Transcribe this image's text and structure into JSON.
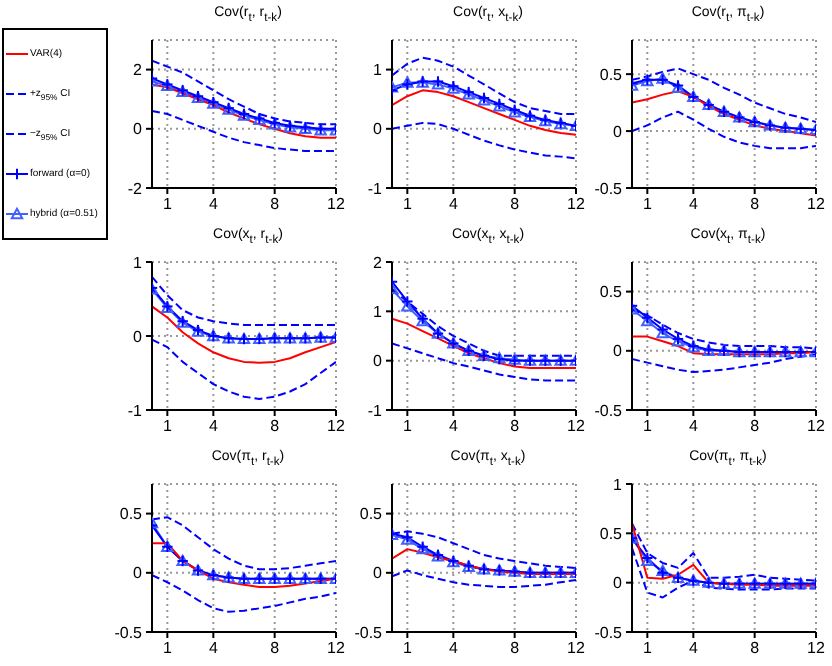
{
  "chart_data": [
    {
      "type": "line",
      "title": "Cov(r$_{t}$, r$_{t-k}$)",
      "x": [
        0,
        1,
        2,
        3,
        4,
        5,
        6,
        7,
        8,
        9,
        10,
        11,
        12
      ],
      "xlim": [
        0,
        12
      ],
      "xticks": [
        1,
        4,
        8,
        12
      ],
      "ylim": [
        -2,
        3
      ],
      "yticks": [
        -2,
        0,
        2
      ],
      "grid": true,
      "legend": "left",
      "series": [
        {
          "name": "VAR(4)",
          "color": "#ff0000",
          "line_style": "solid",
          "marker": "none",
          "values": [
            1.5,
            1.4,
            1.2,
            1.0,
            0.8,
            0.55,
            0.35,
            0.15,
            0,
            -0.15,
            -0.25,
            -0.3,
            -0.3
          ]
        },
        {
          "name": "+z$_{95%}$ CI",
          "color": "#0000ff",
          "line_style": "dashed",
          "marker": "none",
          "values": [
            2.3,
            2.1,
            1.9,
            1.6,
            1.3,
            1.0,
            0.75,
            0.5,
            0.35,
            0.25,
            0.2,
            0.15,
            0.15
          ]
        },
        {
          "name": "−z$_{95%}$ CI",
          "color": "#0000ff",
          "line_style": "dashed",
          "marker": "none",
          "values": [
            0.6,
            0.5,
            0.3,
            0.1,
            -0.1,
            -0.3,
            -0.45,
            -0.55,
            -0.65,
            -0.7,
            -0.75,
            -0.75,
            -0.75
          ]
        },
        {
          "name": "forward (α=0)",
          "color": "#0000ff",
          "line_style": "solid",
          "marker": "cross",
          "values": [
            1.7,
            1.5,
            1.3,
            1.1,
            0.9,
            0.7,
            0.5,
            0.35,
            0.2,
            0.1,
            0.05,
            0,
            0
          ]
        },
        {
          "name": "hybrid (α=0.51)",
          "color": "#4060ff",
          "line_style": "solid",
          "marker": "triangle",
          "values": [
            1.6,
            1.45,
            1.25,
            1.05,
            0.85,
            0.65,
            0.45,
            0.3,
            0.15,
            0.05,
            0,
            -0.05,
            -0.05
          ]
        }
      ]
    },
    {
      "type": "line",
      "title": "Cov(r$_{t}$, x$_{t-k}$)",
      "x": [
        0,
        1,
        2,
        3,
        4,
        5,
        6,
        7,
        8,
        9,
        10,
        11,
        12
      ],
      "xlim": [
        0,
        12
      ],
      "xticks": [
        1,
        4,
        8,
        12
      ],
      "ylim": [
        -1,
        1.5
      ],
      "yticks": [
        -1,
        0,
        1
      ],
      "grid": true,
      "series": [
        {
          "color": "#ff0000",
          "line_style": "solid",
          "marker": "none",
          "values": [
            0.4,
            0.55,
            0.65,
            0.62,
            0.55,
            0.45,
            0.35,
            0.25,
            0.15,
            0.05,
            -0.02,
            -0.07,
            -0.1
          ]
        },
        {
          "color": "#0000ff",
          "line_style": "dashed",
          "marker": "none",
          "values": [
            0.9,
            1.1,
            1.2,
            1.15,
            1.05,
            0.9,
            0.75,
            0.6,
            0.45,
            0.35,
            0.3,
            0.25,
            0.25
          ]
        },
        {
          "color": "#0000ff",
          "line_style": "dashed",
          "marker": "none",
          "values": [
            0,
            0.05,
            0.1,
            0.08,
            0,
            -0.1,
            -0.2,
            -0.28,
            -0.35,
            -0.4,
            -0.45,
            -0.47,
            -0.5
          ]
        },
        {
          "color": "#0000ff",
          "line_style": "solid",
          "marker": "cross",
          "values": [
            0.65,
            0.75,
            0.8,
            0.8,
            0.72,
            0.62,
            0.52,
            0.42,
            0.32,
            0.22,
            0.15,
            0.1,
            0.05
          ]
        },
        {
          "color": "#4060ff",
          "line_style": "solid",
          "marker": "triangle",
          "values": [
            0.7,
            0.78,
            0.78,
            0.75,
            0.68,
            0.58,
            0.48,
            0.38,
            0.28,
            0.2,
            0.13,
            0.08,
            0.05
          ]
        }
      ]
    },
    {
      "type": "line",
      "title": "Cov(r$_{t}$, π$_{t-k}$)",
      "x": [
        0,
        1,
        2,
        3,
        4,
        5,
        6,
        7,
        8,
        9,
        10,
        11,
        12
      ],
      "xlim": [
        0,
        12
      ],
      "xticks": [
        1,
        4,
        8,
        12
      ],
      "ylim": [
        -0.5,
        0.8
      ],
      "yticks": [
        -0.5,
        0,
        0.5
      ],
      "grid": true,
      "series": [
        {
          "color": "#ff0000",
          "line_style": "solid",
          "marker": "none",
          "values": [
            0.25,
            0.28,
            0.32,
            0.35,
            0.3,
            0.22,
            0.15,
            0.1,
            0.05,
            0.02,
            0,
            -0.02,
            -0.04
          ]
        },
        {
          "color": "#0000ff",
          "line_style": "dashed",
          "marker": "none",
          "values": [
            0.45,
            0.48,
            0.52,
            0.55,
            0.5,
            0.45,
            0.38,
            0.32,
            0.25,
            0.2,
            0.15,
            0.12,
            0.08
          ]
        },
        {
          "color": "#0000ff",
          "line_style": "dashed",
          "marker": "none",
          "values": [
            0,
            0.05,
            0.12,
            0.17,
            0.1,
            0.02,
            -0.05,
            -0.1,
            -0.13,
            -0.15,
            -0.15,
            -0.15,
            -0.13
          ]
        },
        {
          "color": "#0000ff",
          "line_style": "solid",
          "marker": "cross",
          "values": [
            0.42,
            0.45,
            0.45,
            0.4,
            0.3,
            0.23,
            0.17,
            0.12,
            0.08,
            0.05,
            0.03,
            0.02,
            0.01
          ]
        },
        {
          "color": "#4060ff",
          "line_style": "solid",
          "marker": "triangle",
          "values": [
            0.4,
            0.44,
            0.46,
            0.38,
            0.3,
            0.23,
            0.17,
            0.12,
            0.08,
            0.05,
            0.03,
            0.02,
            0.01
          ]
        }
      ]
    },
    {
      "type": "line",
      "title": "Cov(x$_{t}$, r$_{t-k}$)",
      "x": [
        0,
        1,
        2,
        3,
        4,
        5,
        6,
        7,
        8,
        9,
        10,
        11,
        12
      ],
      "xlim": [
        0,
        12
      ],
      "xticks": [
        1,
        4,
        8,
        12
      ],
      "ylim": [
        -1,
        1
      ],
      "yticks": [
        -1,
        0,
        1
      ],
      "grid": true,
      "series": [
        {
          "color": "#ff0000",
          "line_style": "solid",
          "marker": "none",
          "values": [
            0.4,
            0.25,
            0.05,
            -0.1,
            -0.22,
            -0.3,
            -0.35,
            -0.36,
            -0.35,
            -0.3,
            -0.22,
            -0.15,
            -0.08
          ]
        },
        {
          "color": "#0000ff",
          "line_style": "dashed",
          "marker": "none",
          "values": [
            0.8,
            0.55,
            0.35,
            0.25,
            0.2,
            0.17,
            0.15,
            0.15,
            0.15,
            0.15,
            0.15,
            0.15,
            0.15
          ]
        },
        {
          "color": "#0000ff",
          "line_style": "dashed",
          "marker": "none",
          "values": [
            -0.05,
            -0.15,
            -0.35,
            -0.5,
            -0.65,
            -0.75,
            -0.82,
            -0.85,
            -0.82,
            -0.75,
            -0.65,
            -0.5,
            -0.35
          ]
        },
        {
          "color": "#0000ff",
          "line_style": "solid",
          "marker": "cross",
          "values": [
            0.65,
            0.4,
            0.2,
            0.08,
            0,
            -0.03,
            -0.04,
            -0.04,
            -0.03,
            -0.03,
            -0.03,
            -0.02,
            -0.02
          ]
        },
        {
          "color": "#4060ff",
          "line_style": "solid",
          "marker": "triangle",
          "values": [
            0.63,
            0.38,
            0.18,
            0.06,
            0,
            -0.03,
            -0.04,
            -0.04,
            -0.03,
            -0.03,
            -0.03,
            -0.02,
            -0.02
          ]
        }
      ]
    },
    {
      "type": "line",
      "title": "Cov(x$_{t}$, x$_{t-k}$)",
      "x": [
        0,
        1,
        2,
        3,
        4,
        5,
        6,
        7,
        8,
        9,
        10,
        11,
        12
      ],
      "xlim": [
        0,
        12
      ],
      "xticks": [
        1,
        4,
        8,
        12
      ],
      "ylim": [
        -1,
        2
      ],
      "yticks": [
        -1,
        0,
        1,
        2
      ],
      "grid": true,
      "series": [
        {
          "color": "#ff0000",
          "line_style": "solid",
          "marker": "none",
          "values": [
            0.85,
            0.75,
            0.6,
            0.45,
            0.3,
            0.15,
            0.05,
            -0.05,
            -0.12,
            -0.15,
            -0.15,
            -0.15,
            -0.15
          ]
        },
        {
          "color": "#0000ff",
          "line_style": "dashed",
          "marker": "none",
          "values": [
            1.45,
            1.2,
            0.95,
            0.7,
            0.5,
            0.35,
            0.2,
            0.1,
            0.1,
            0.1,
            0.1,
            0.1,
            0.1
          ]
        },
        {
          "color": "#0000ff",
          "line_style": "dashed",
          "marker": "none",
          "values": [
            0.35,
            0.25,
            0.15,
            0.05,
            -0.05,
            -0.12,
            -0.2,
            -0.28,
            -0.33,
            -0.38,
            -0.4,
            -0.4,
            -0.4
          ]
        },
        {
          "color": "#0000ff",
          "line_style": "solid",
          "marker": "cross",
          "values": [
            1.6,
            1.2,
            0.85,
            0.55,
            0.35,
            0.2,
            0.1,
            0.03,
            0,
            0,
            0,
            0,
            0
          ]
        },
        {
          "color": "#4060ff",
          "line_style": "solid",
          "marker": "triangle",
          "values": [
            1.45,
            1.1,
            0.8,
            0.55,
            0.35,
            0.2,
            0.1,
            0.05,
            0.02,
            0,
            0,
            0,
            0
          ]
        }
      ]
    },
    {
      "type": "line",
      "title": "Cov(x$_{t}$, π$_{t-k}$)",
      "x": [
        0,
        1,
        2,
        3,
        4,
        5,
        6,
        7,
        8,
        9,
        10,
        11,
        12
      ],
      "xlim": [
        0,
        12
      ],
      "xticks": [
        1,
        4,
        8,
        12
      ],
      "ylim": [
        -0.5,
        0.75
      ],
      "yticks": [
        -0.5,
        0,
        0.5
      ],
      "grid": true,
      "series": [
        {
          "color": "#ff0000",
          "line_style": "solid",
          "marker": "none",
          "values": [
            0.12,
            0.12,
            0.08,
            0.04,
            -0.02,
            -0.03,
            -0.03,
            -0.03,
            -0.03,
            -0.03,
            -0.02,
            -0.02,
            -0.01
          ]
        },
        {
          "color": "#0000ff",
          "line_style": "dashed",
          "marker": "none",
          "values": [
            0.35,
            0.3,
            0.22,
            0.15,
            0.1,
            0.07,
            0.05,
            0.04,
            0.04,
            0.04,
            0.03,
            0.03,
            0.02
          ]
        },
        {
          "color": "#0000ff",
          "line_style": "dashed",
          "marker": "none",
          "values": [
            -0.07,
            -0.1,
            -0.13,
            -0.16,
            -0.18,
            -0.17,
            -0.16,
            -0.14,
            -0.12,
            -0.1,
            -0.07,
            -0.05,
            -0.03
          ]
        },
        {
          "color": "#0000ff",
          "line_style": "solid",
          "marker": "cross",
          "values": [
            0.38,
            0.28,
            0.18,
            0.1,
            0.04,
            0.01,
            0,
            -0.01,
            -0.01,
            -0.01,
            -0.01,
            -0.01,
            -0.01
          ]
        },
        {
          "color": "#4060ff",
          "line_style": "solid",
          "marker": "triangle",
          "values": [
            0.35,
            0.25,
            0.15,
            0.08,
            0.03,
            0,
            0,
            -0.01,
            -0.01,
            -0.01,
            -0.01,
            -0.01,
            -0.01
          ]
        }
      ]
    },
    {
      "type": "line",
      "title": "Cov(π$_{t}$, r$_{t-k}$)",
      "x": [
        0,
        1,
        2,
        3,
        4,
        5,
        6,
        7,
        8,
        9,
        10,
        11,
        12
      ],
      "xlim": [
        0,
        12
      ],
      "xticks": [
        1,
        4,
        8,
        12
      ],
      "ylim": [
        -0.5,
        0.75
      ],
      "yticks": [
        -0.5,
        0,
        0.5
      ],
      "grid": true,
      "series": [
        {
          "color": "#ff0000",
          "line_style": "solid",
          "marker": "none",
          "values": [
            0.25,
            0.25,
            0.1,
            0.02,
            -0.05,
            -0.08,
            -0.1,
            -0.12,
            -0.12,
            -0.11,
            -0.09,
            -0.07,
            -0.05
          ]
        },
        {
          "color": "#0000ff",
          "line_style": "dashed",
          "marker": "none",
          "values": [
            0.45,
            0.47,
            0.4,
            0.3,
            0.2,
            0.12,
            0.06,
            0.03,
            0.03,
            0.04,
            0.06,
            0.08,
            0.1
          ]
        },
        {
          "color": "#0000ff",
          "line_style": "dashed",
          "marker": "none",
          "values": [
            -0.02,
            -0.08,
            -0.15,
            -0.23,
            -0.3,
            -0.33,
            -0.32,
            -0.3,
            -0.28,
            -0.25,
            -0.22,
            -0.2,
            -0.17
          ]
        },
        {
          "color": "#0000ff",
          "line_style": "solid",
          "marker": "cross",
          "values": [
            0.4,
            0.22,
            0.1,
            0.02,
            -0.02,
            -0.04,
            -0.05,
            -0.05,
            -0.05,
            -0.05,
            -0.05,
            -0.05,
            -0.05
          ]
        },
        {
          "color": "#4060ff",
          "line_style": "solid",
          "marker": "triangle",
          "values": [
            0.42,
            0.22,
            0.1,
            0.02,
            -0.02,
            -0.04,
            -0.05,
            -0.05,
            -0.05,
            -0.05,
            -0.05,
            -0.05,
            -0.05
          ]
        }
      ]
    },
    {
      "type": "line",
      "title": "Cov(π$_{t}$, x$_{t-k}$)",
      "x": [
        0,
        1,
        2,
        3,
        4,
        5,
        6,
        7,
        8,
        9,
        10,
        11,
        12
      ],
      "xlim": [
        0,
        12
      ],
      "xticks": [
        1,
        4,
        8,
        12
      ],
      "ylim": [
        -0.5,
        0.75
      ],
      "yticks": [
        -0.5,
        0,
        0.5
      ],
      "grid": true,
      "series": [
        {
          "color": "#ff0000",
          "line_style": "solid",
          "marker": "none",
          "values": [
            0.12,
            0.2,
            0.17,
            0.13,
            0.1,
            0.06,
            0.03,
            0.01,
            0,
            -0.01,
            -0.01,
            -0.01,
            -0.01
          ]
        },
        {
          "color": "#0000ff",
          "line_style": "dashed",
          "marker": "none",
          "values": [
            0.33,
            0.35,
            0.33,
            0.3,
            0.25,
            0.2,
            0.15,
            0.12,
            0.1,
            0.08,
            0.06,
            0.05,
            0.04
          ]
        },
        {
          "color": "#0000ff",
          "line_style": "dashed",
          "marker": "none",
          "values": [
            -0.03,
            0.02,
            -0.02,
            -0.05,
            -0.08,
            -0.1,
            -0.11,
            -0.12,
            -0.12,
            -0.11,
            -0.1,
            -0.08,
            -0.06
          ]
        },
        {
          "color": "#0000ff",
          "line_style": "solid",
          "marker": "cross",
          "values": [
            0.33,
            0.3,
            0.22,
            0.15,
            0.1,
            0.06,
            0.03,
            0.02,
            0.01,
            0,
            0,
            0,
            0
          ]
        },
        {
          "color": "#4060ff",
          "line_style": "solid",
          "marker": "triangle",
          "values": [
            0.32,
            0.28,
            0.2,
            0.14,
            0.09,
            0.05,
            0.03,
            0.02,
            0.01,
            0,
            0,
            0,
            0
          ]
        }
      ]
    },
    {
      "type": "line",
      "title": "Cov(π$_{t}$, π$_{t-k}$)",
      "x": [
        0,
        1,
        2,
        3,
        4,
        5,
        6,
        7,
        8,
        9,
        10,
        11,
        12
      ],
      "xlim": [
        0,
        12
      ],
      "xticks": [
        1,
        4,
        8,
        12
      ],
      "ylim": [
        -0.5,
        1
      ],
      "yticks": [
        -0.5,
        0,
        0.5,
        1
      ],
      "grid": true,
      "series": [
        {
          "color": "#ff0000",
          "line_style": "solid",
          "marker": "none",
          "values": [
            0.6,
            0.05,
            0.04,
            0.08,
            0.18,
            0,
            -0.01,
            -0.02,
            -0.02,
            -0.03,
            -0.03,
            -0.03,
            -0.03
          ]
        },
        {
          "color": "#0000ff",
          "line_style": "dashed",
          "marker": "none",
          "values": [
            0.6,
            0.3,
            0.2,
            0.15,
            0.3,
            0.05,
            0.05,
            0.06,
            0.08,
            0.05,
            0.04,
            0.03,
            0.02
          ]
        },
        {
          "color": "#0000ff",
          "line_style": "dashed",
          "marker": "none",
          "values": [
            0.35,
            -0.1,
            -0.15,
            -0.05,
            0.02,
            -0.05,
            -0.06,
            -0.07,
            -0.07,
            -0.07,
            -0.06,
            -0.06,
            -0.06
          ]
        },
        {
          "color": "#0000ff",
          "line_style": "solid",
          "marker": "cross",
          "values": [
            0.45,
            0.25,
            0.1,
            0.05,
            0.02,
            0,
            -0.01,
            -0.01,
            -0.01,
            -0.01,
            -0.01,
            -0.01,
            -0.01
          ]
        },
        {
          "color": "#4060ff",
          "line_style": "solid",
          "marker": "triangle",
          "values": [
            0.45,
            0.22,
            0.12,
            0.05,
            0.02,
            0,
            -0.01,
            -0.01,
            -0.01,
            -0.01,
            -0.01,
            -0.01,
            -0.01
          ]
        }
      ]
    }
  ]
}
